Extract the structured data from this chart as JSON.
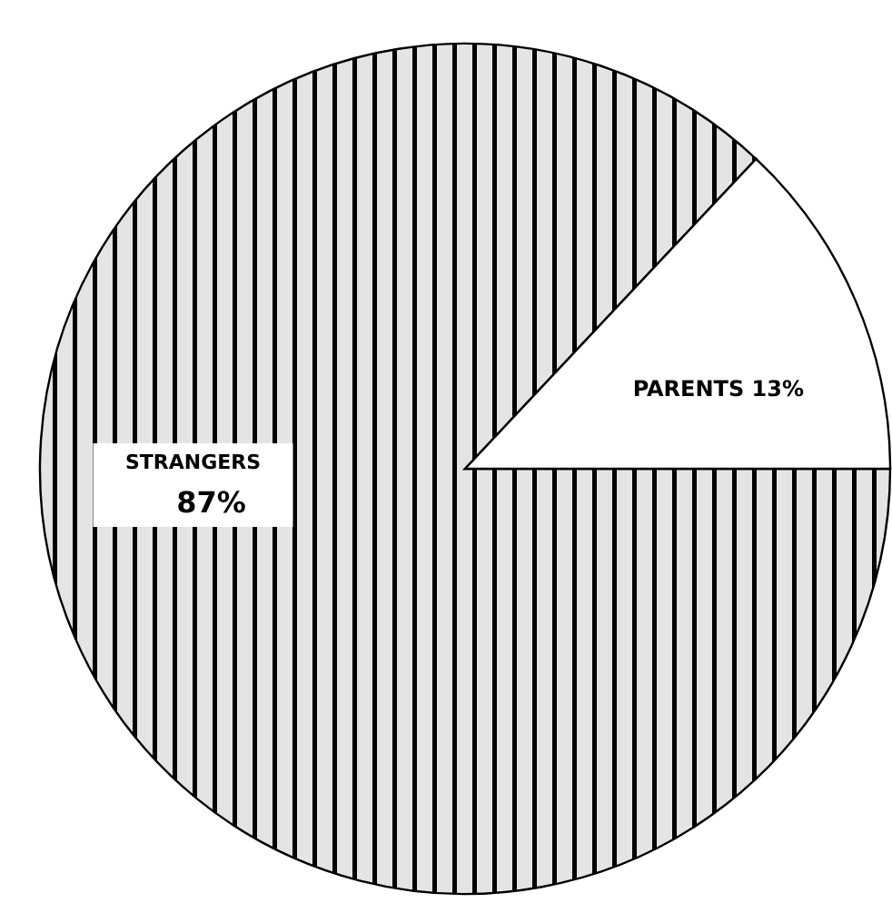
{
  "chart_data": {
    "type": "pie",
    "categories": [
      "PARENTS",
      "STRANGERS"
    ],
    "values": [
      13,
      87
    ],
    "colors": [
      "#ffffff",
      "#000000"
    ],
    "value_labels": [
      "13%",
      "87%"
    ]
  }
}
